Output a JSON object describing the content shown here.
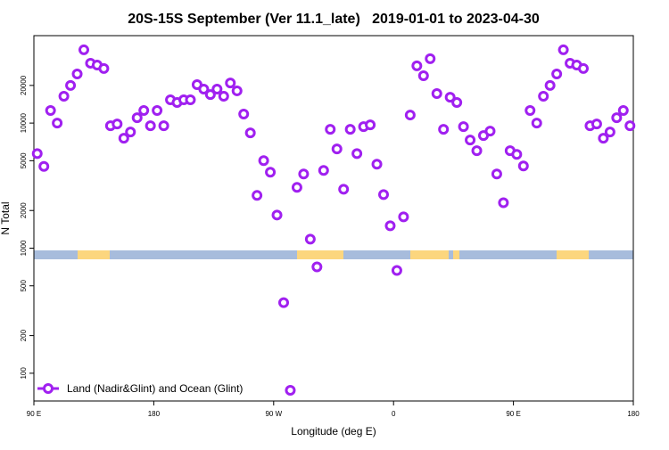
{
  "chart_data": {
    "type": "scatter",
    "title": "20S-15S September (Ver 11.1_late)   2019-01-01 to 2023-04-30",
    "x_label": "Longitude (deg E)",
    "y_label": "N Total",
    "log_y": true,
    "legend_position": "lower left",
    "xlim": [
      90,
      540
    ],
    "xticks": [
      {
        "value": 90,
        "label": "90 E"
      },
      {
        "value": 180,
        "label": "180"
      },
      {
        "value": 270,
        "label": "90 W"
      },
      {
        "value": 360,
        "label": "0"
      },
      {
        "value": 450,
        "label": "90 E"
      },
      {
        "value": 540,
        "label": "180"
      }
    ],
    "ylim": [
      60,
      50000
    ],
    "yticks": [
      100,
      200,
      500,
      1000,
      2000,
      5000,
      10000,
      20000
    ],
    "series": [
      {
        "name": "Land (Nadir&Glint) and Ocean (Glint)",
        "color": "#a020f0",
        "x": [
          92.5,
          97.5,
          102.5,
          107.5,
          112.5,
          117.5,
          122.5,
          127.5,
          132.5,
          137.5,
          142.5,
          147.5,
          152.5,
          157.5,
          162.5,
          167.5,
          172.5,
          177.5,
          182.5,
          187.5,
          192.5,
          197.5,
          202.5,
          207.5,
          212.5,
          217.5,
          222.5,
          227.5,
          232.5,
          237.5,
          242.5,
          247.5,
          252.5,
          257.5,
          262.5,
          267.5,
          272.5,
          277.5,
          282.5,
          287.5,
          292.5,
          297.5,
          302.5,
          307.5,
          312.5,
          317.5,
          322.5,
          327.5,
          332.5,
          337.5,
          342.5,
          347.5,
          352.5,
          357.5,
          362.5,
          367.5,
          372.5,
          377.5,
          382.5,
          387.5,
          392.5,
          397.5,
          402.5,
          407.5,
          412.5,
          417.5,
          422.5,
          427.5,
          432.5,
          437.5,
          442.5,
          447.5,
          452.5,
          457.5,
          462.5,
          467.5,
          472.5,
          477.5,
          482.5,
          487.5,
          492.5,
          497.5,
          502.5,
          507.5,
          512.5,
          517.5,
          522.5,
          527.5,
          532.5,
          537.5
        ],
        "values": [
          5700,
          4500,
          12600,
          10000,
          16400,
          20000,
          24700,
          38500,
          30100,
          29100,
          27300,
          9520,
          9840,
          7560,
          8480,
          11040,
          12600,
          9520,
          12600,
          9520,
          15340,
          14600,
          15340,
          15340,
          20300,
          18700,
          16900,
          18700,
          16400,
          20900,
          18100,
          11800,
          8350,
          2640,
          5010,
          4050,
          1840,
          367,
          73,
          3060,
          3920,
          1180,
          708,
          4180,
          8910,
          6210,
          2960,
          8910,
          5700,
          9360,
          9680,
          4690,
          2680,
          1510,
          663,
          1780,
          11600,
          28700,
          23900,
          32700,
          17200,
          8910,
          16100,
          14600,
          9360,
          7320,
          6010,
          7940,
          8620,
          3920,
          2310,
          6010,
          5620,
          4540,
          12600,
          10000,
          16400,
          20000,
          24700,
          38500,
          30100,
          29100,
          27300,
          9520,
          9840,
          7560,
          8480,
          11040,
          12600,
          9520
        ]
      }
    ]
  }
}
